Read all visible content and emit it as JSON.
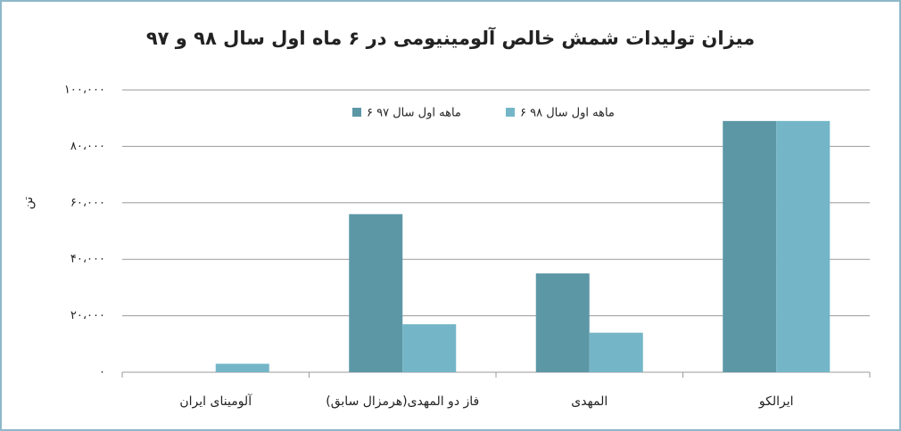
{
  "chart_data": {
    "type": "bar",
    "title": "میزان تولیدات شمش خالص آلومینیومی در ۶ ماه اول سال ۹۸ و ۹۷",
    "y_label": "تن",
    "categories": [
      "آلومینای ایران",
      "فاز دو المهدی(هرمزال سابق)",
      "المهدی",
      "ایرالکو"
    ],
    "series": [
      {
        "name": "۶ ماهه اول سال ۹۷",
        "color": "#5c97a6",
        "values": [
          0,
          56000,
          35000,
          89000
        ]
      },
      {
        "name": "۶ ماهه اول سال ۹۸",
        "color": "#74b6c8",
        "values": [
          3000,
          17000,
          14000,
          89000
        ]
      }
    ],
    "ylim": [
      0,
      100000
    ],
    "yticks": [
      {
        "value": 0,
        "label": "۰"
      },
      {
        "value": 20000,
        "label": "۲۰،۰۰۰"
      },
      {
        "value": 40000,
        "label": "۴۰،۰۰۰"
      },
      {
        "value": 60000,
        "label": "۶۰،۰۰۰"
      },
      {
        "value": 80000,
        "label": "۸۰،۰۰۰"
      },
      {
        "value": 100000,
        "label": "۱۰۰،۰۰۰"
      }
    ],
    "grid": true
  }
}
